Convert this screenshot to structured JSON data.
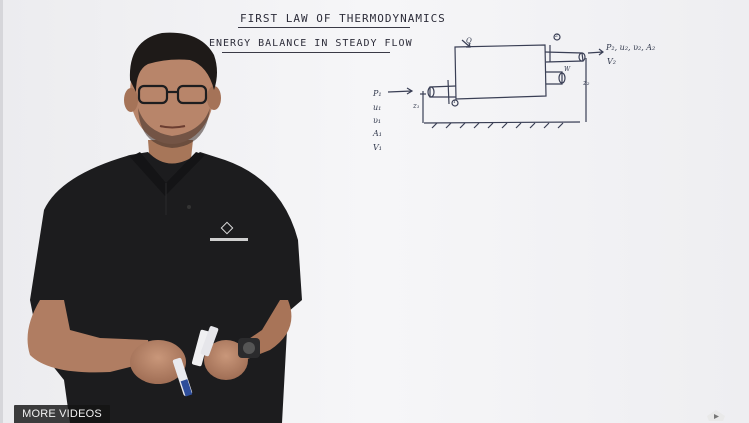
{
  "board": {
    "title": "FIRST LAW OF THERMODYNAMICS",
    "subtitle": "ENERGY BALANCE IN STEADY FLOW",
    "inlet_vars": [
      "P₁",
      "u₁",
      "υ₁",
      "A₁",
      "V₁"
    ],
    "outlet_label": "P₂, u₂, υ₂, A₂",
    "outlet_label2": "V₂",
    "height_in": "z₁",
    "height_out": "z₂",
    "heat_label": "Q",
    "work_label": "W",
    "section_1": "1",
    "section_2": "2"
  },
  "player": {
    "more_videos_label": "MORE VIDEOS"
  },
  "colors": {
    "board": "#f4f4f6",
    "ink": "#2d2d3a",
    "shirt": "#1c1c1e",
    "skin": "#b8856a"
  }
}
